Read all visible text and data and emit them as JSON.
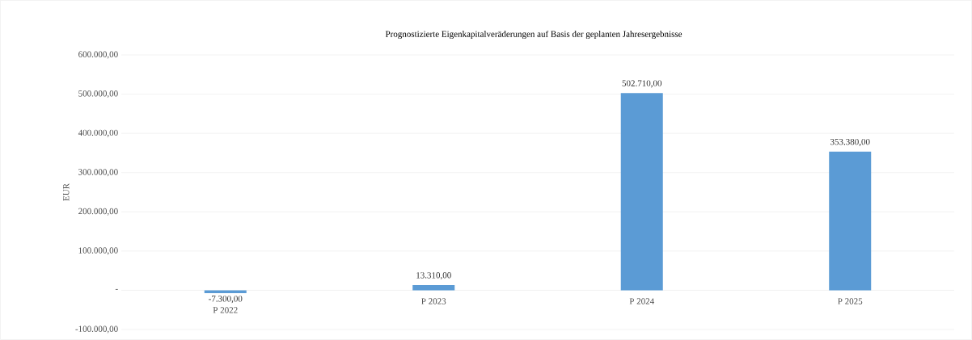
{
  "chart_data": {
    "type": "bar",
    "title": "Prognostizierte Eigenkapitalveräderungen  auf Basis der geplanten Jahresergebnisse",
    "ylabel": "EUR",
    "categories": [
      "P 2022",
      "P 2023",
      "P 2024",
      "P 2025"
    ],
    "values": [
      -7300,
      13310,
      502710,
      353380
    ],
    "value_labels": [
      "-7.300,00",
      "13.310,00",
      "502.710,00",
      "353.380,00"
    ],
    "color": "#5b9bd5",
    "ylim": [
      -100000,
      600000
    ],
    "yticks": [
      {
        "value": -100000,
        "label": "-100.000,00"
      },
      {
        "value": 0,
        "label": "-"
      },
      {
        "value": 100000,
        "label": "100.000,00"
      },
      {
        "value": 200000,
        "label": "200.000,00"
      },
      {
        "value": 300000,
        "label": "300.000,00"
      },
      {
        "value": 400000,
        "label": "400.000,00"
      },
      {
        "value": 500000,
        "label": "500.000,00"
      },
      {
        "value": 600000,
        "label": "600.000,00"
      }
    ],
    "grid": "y"
  }
}
